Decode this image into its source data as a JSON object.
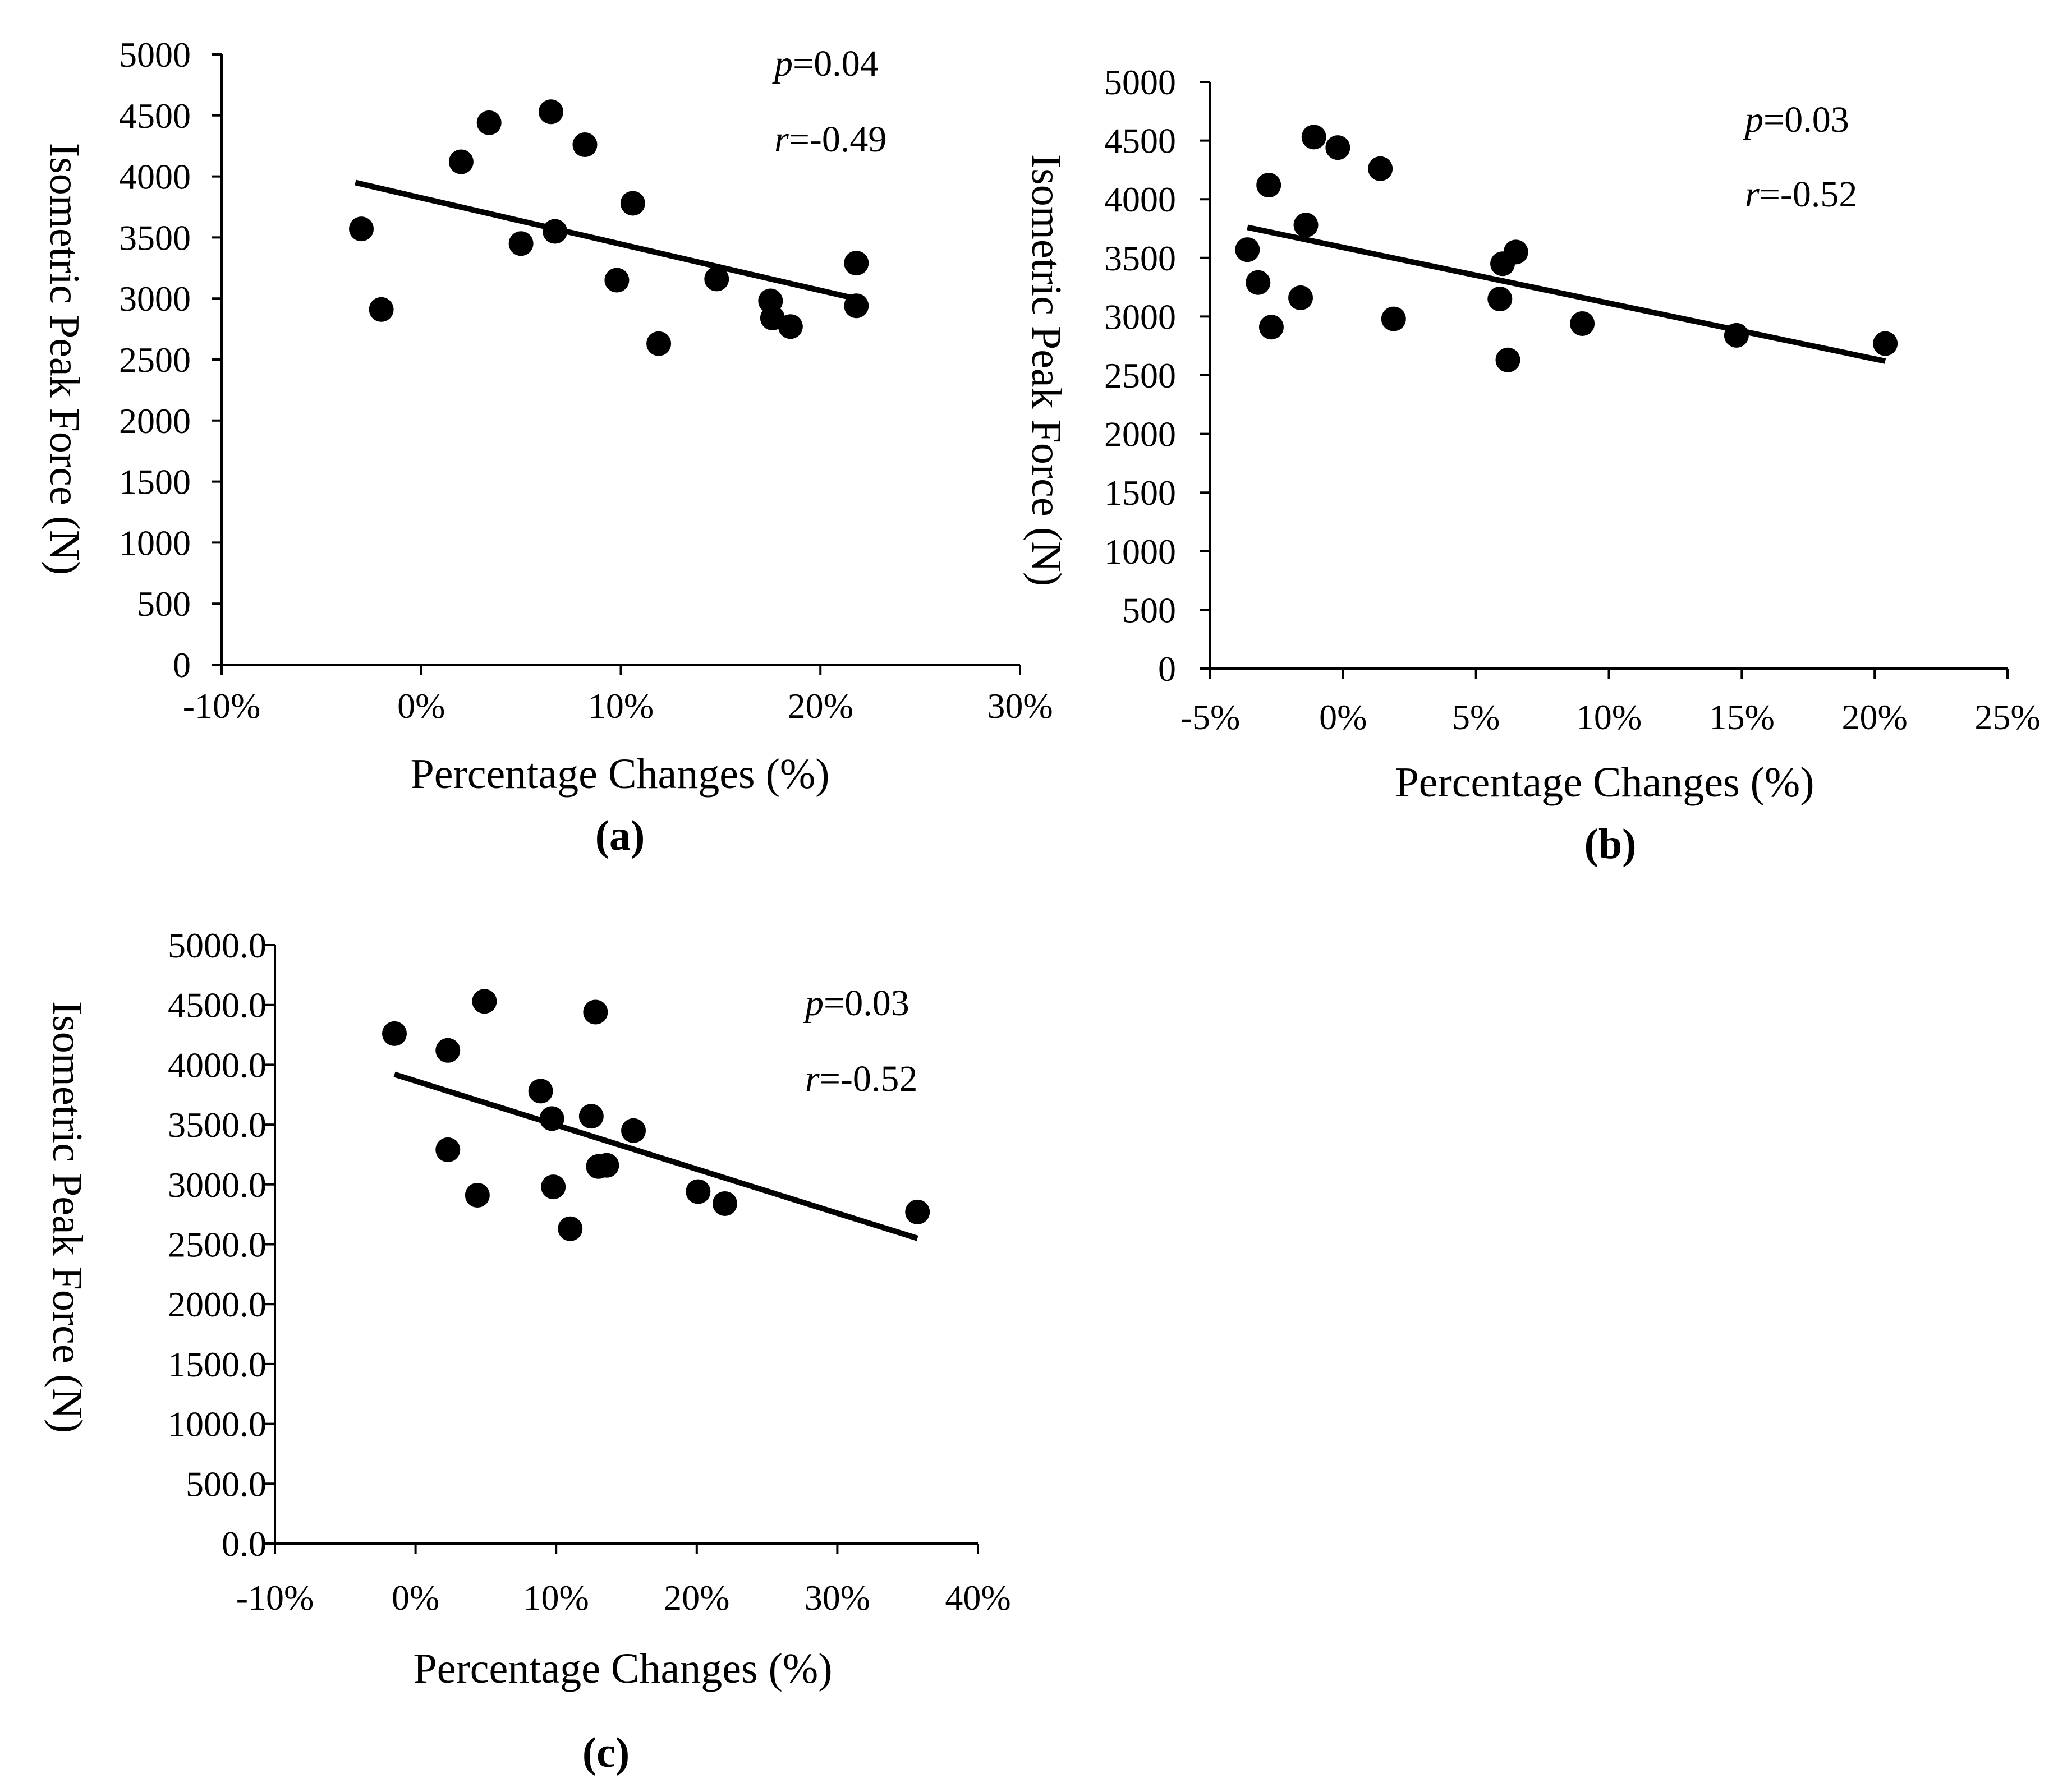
{
  "figure": {
    "panels": [
      {
        "id": "a",
        "label": "(a)",
        "p_symbol": "p",
        "p_value": "=0.04",
        "r_symbol": "r",
        "r_value": "=-0.49"
      },
      {
        "id": "b",
        "label": "(b)",
        "p_symbol": "p",
        "p_value": "=0.03",
        "r_symbol": "r",
        "r_value": "=-0.52"
      },
      {
        "id": "c",
        "label": "(c)",
        "p_symbol": "p",
        "p_value": "=0.03",
        "r_symbol": "r",
        "r_value": "=-0.52"
      }
    ]
  },
  "chart_data": [
    {
      "type": "scatter",
      "panel": "(a)",
      "xlabel": "Percentage Changes (%)",
      "ylabel": "Isometric Peak Force (N)",
      "xlim": [
        -10,
        30
      ],
      "ylim": [
        0,
        5000
      ],
      "x_ticks": [
        -10,
        0,
        10,
        20,
        30
      ],
      "x_tick_labels": [
        "-10%",
        "0%",
        "10%",
        "20%",
        "30%"
      ],
      "y_ticks": [
        0,
        500,
        1000,
        1500,
        2000,
        2500,
        3000,
        3500,
        4000,
        4500,
        5000
      ],
      "y_tick_labels": [
        "0",
        "500",
        "1000",
        "1500",
        "2000",
        "2500",
        "3000",
        "3500",
        "4000",
        "4500",
        "5000"
      ],
      "grid": false,
      "points": [
        {
          "x": -3.0,
          "y": 3570
        },
        {
          "x": -2.0,
          "y": 2910
        },
        {
          "x": 2.0,
          "y": 4120
        },
        {
          "x": 3.4,
          "y": 4440
        },
        {
          "x": 5.0,
          "y": 3450
        },
        {
          "x": 6.5,
          "y": 4530
        },
        {
          "x": 6.7,
          "y": 3550
        },
        {
          "x": 8.2,
          "y": 4260
        },
        {
          "x": 10.6,
          "y": 3780
        },
        {
          "x": 9.8,
          "y": 3150
        },
        {
          "x": 11.9,
          "y": 2630
        },
        {
          "x": 14.8,
          "y": 3160
        },
        {
          "x": 17.5,
          "y": 2980
        },
        {
          "x": 17.6,
          "y": 2840
        },
        {
          "x": 18.5,
          "y": 2770
        },
        {
          "x": 21.8,
          "y": 3290
        },
        {
          "x": 21.8,
          "y": 2940
        }
      ],
      "trendline": {
        "x": [
          -3.3,
          22.0
        ],
        "y": [
          3950,
          2990
        ]
      }
    },
    {
      "type": "scatter",
      "panel": "(b)",
      "xlabel": "Percentage Changes (%)",
      "ylabel": "Isometric Peak Force (N)",
      "xlim": [
        -5,
        25
      ],
      "ylim": [
        0,
        5000
      ],
      "x_ticks": [
        -5,
        0,
        5,
        10,
        15,
        20,
        25
      ],
      "x_tick_labels": [
        "-5%",
        "0%",
        "5%",
        "10%",
        "15%",
        "20%",
        "25%"
      ],
      "y_ticks": [
        0,
        500,
        1000,
        1500,
        2000,
        2500,
        3000,
        3500,
        4000,
        4500,
        5000
      ],
      "y_tick_labels": [
        "0",
        "500",
        "1000",
        "1500",
        "2000",
        "2500",
        "3000",
        "3500",
        "4000",
        "4500",
        "5000"
      ],
      "grid": false,
      "points": [
        {
          "x": -3.6,
          "y": 3570
        },
        {
          "x": -3.2,
          "y": 3290
        },
        {
          "x": -2.8,
          "y": 4120
        },
        {
          "x": -2.7,
          "y": 2910
        },
        {
          "x": -1.6,
          "y": 3160
        },
        {
          "x": -1.4,
          "y": 3780
        },
        {
          "x": -1.1,
          "y": 4530
        },
        {
          "x": -0.2,
          "y": 4440
        },
        {
          "x": 1.4,
          "y": 4260
        },
        {
          "x": 1.9,
          "y": 2980
        },
        {
          "x": 5.9,
          "y": 3150
        },
        {
          "x": 6.0,
          "y": 3450
        },
        {
          "x": 6.2,
          "y": 2630
        },
        {
          "x": 6.5,
          "y": 3550
        },
        {
          "x": 9.0,
          "y": 2940
        },
        {
          "x": 14.8,
          "y": 2840
        },
        {
          "x": 20.4,
          "y": 2770
        }
      ],
      "trendline": {
        "x": [
          -3.6,
          20.4
        ],
        "y": [
          3760,
          2620
        ]
      }
    },
    {
      "type": "scatter",
      "panel": "(c)",
      "xlabel": "Percentage Changes (%)",
      "ylabel": "Isometric Peak Force (N)",
      "xlim": [
        -10,
        40
      ],
      "ylim": [
        0,
        5000
      ],
      "x_ticks": [
        -10,
        0,
        10,
        20,
        30,
        40
      ],
      "x_tick_labels": [
        "-10%",
        "0%",
        "10%",
        "20%",
        "30%",
        "40%"
      ],
      "y_ticks": [
        0,
        500,
        1000,
        1500,
        2000,
        2500,
        3000,
        3500,
        4000,
        4500,
        5000
      ],
      "y_tick_labels": [
        "0.0",
        "500.0",
        "1000.0",
        "1500.0",
        "2000.0",
        "2500.0",
        "3000.0",
        "3500.0",
        "4000.0",
        "4500.0",
        "5000.0"
      ],
      "grid": false,
      "points": [
        {
          "x": -1.5,
          "y": 4260
        },
        {
          "x": 2.3,
          "y": 4120
        },
        {
          "x": 2.3,
          "y": 3290
        },
        {
          "x": 4.4,
          "y": 2910
        },
        {
          "x": 4.9,
          "y": 4530
        },
        {
          "x": 8.9,
          "y": 3780
        },
        {
          "x": 9.7,
          "y": 3550
        },
        {
          "x": 9.8,
          "y": 2980
        },
        {
          "x": 11.0,
          "y": 2630
        },
        {
          "x": 12.5,
          "y": 3570
        },
        {
          "x": 12.8,
          "y": 4440
        },
        {
          "x": 13.0,
          "y": 3150
        },
        {
          "x": 13.6,
          "y": 3160
        },
        {
          "x": 15.5,
          "y": 3450
        },
        {
          "x": 20.1,
          "y": 2940
        },
        {
          "x": 22.0,
          "y": 2840
        },
        {
          "x": 35.7,
          "y": 2770
        }
      ],
      "trendline": {
        "x": [
          -1.5,
          35.7
        ],
        "y": [
          3920,
          2550
        ]
      }
    }
  ]
}
